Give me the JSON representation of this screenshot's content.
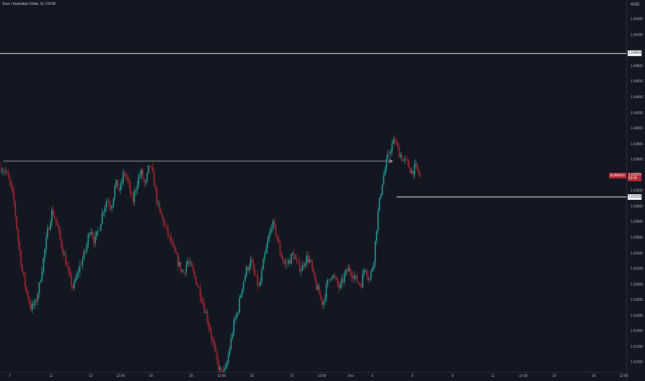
{
  "header": {
    "symbol_title": "Euro / Australian Dollar, 1h, FXCM"
  },
  "price_axis": {
    "currency": "AUD",
    "ticks": [
      "1.65400",
      "1.65200",
      "1.64800",
      "1.64600",
      "1.64400",
      "1.64200",
      "1.64000",
      "1.63800",
      "1.63600",
      "1.63200",
      "1.63000",
      "1.62800",
      "1.62600",
      "1.62400",
      "1.62200",
      "1.62000",
      "1.61800",
      "1.61600",
      "1.61400",
      "1.61200",
      "1.61000"
    ],
    "resistance_label": "1.64964",
    "support_label": "1.63124",
    "last_price_label": "1.63379",
    "countdown_label": "59:06",
    "symbol_badge": "EURAUD"
  },
  "time_axis": {
    "ticks": [
      "7",
      "11",
      "13",
      "12:00",
      "18",
      "20",
      "12:00",
      "25",
      "27",
      "12:00",
      "Dec",
      "3",
      "5",
      "9",
      "11",
      "12:00",
      "16",
      "18",
      "12:00"
    ]
  },
  "colors": {
    "background": "#131722",
    "up": "#26a69a",
    "down": "#b22833",
    "level_line": "#ffffff",
    "axis_text": "#b2b5be"
  },
  "chart_data": {
    "type": "candlestick",
    "symbol": "EURAUD",
    "timeframe": "1h",
    "ylim": [
      1.6088,
      1.6565
    ],
    "price_ticks": [
      1.654,
      1.652,
      1.648,
      1.646,
      1.644,
      1.642,
      1.64,
      1.638,
      1.636,
      1.632,
      1.63,
      1.628,
      1.626,
      1.624,
      1.622,
      1.62,
      1.618,
      1.616,
      1.614,
      1.612,
      1.61
    ],
    "horizontal_levels": [
      {
        "price": 1.64964,
        "label": "1.64964"
      },
      {
        "price": 1.63124,
        "label": "1.63124"
      }
    ],
    "last_price": 1.63379,
    "x_ticks": [
      "7",
      "11",
      "13",
      "12:00",
      "18",
      "20",
      "12:00",
      "25",
      "27",
      "12:00",
      "Dec",
      "3",
      "5",
      "9",
      "11",
      "12:00",
      "16",
      "18",
      "12:00"
    ],
    "close_path": [
      1.635,
      1.6345,
      1.633,
      1.6305,
      1.6255,
      1.6215,
      1.619,
      1.617,
      1.6175,
      1.62,
      1.6235,
      1.627,
      1.6295,
      1.628,
      1.6255,
      1.6235,
      1.621,
      1.6195,
      1.6215,
      1.623,
      1.6245,
      1.6275,
      1.6255,
      1.627,
      1.6295,
      1.631,
      1.63,
      1.633,
      1.632,
      1.6345,
      1.633,
      1.6305,
      1.633,
      1.6345,
      1.6325,
      1.6355,
      1.6335,
      1.63,
      1.6285,
      1.627,
      1.6255,
      1.624,
      1.6225,
      1.6215,
      1.623,
      1.622,
      1.6205,
      1.619,
      1.617,
      1.615,
      1.6125,
      1.61,
      1.6085,
      1.609,
      1.612,
      1.615,
      1.617,
      1.62,
      1.622,
      1.623,
      1.621,
      1.6195,
      1.623,
      1.6255,
      1.628,
      1.6265,
      1.624,
      1.6225,
      1.623,
      1.624,
      1.6225,
      1.622,
      1.6235,
      1.623,
      1.6205,
      1.619,
      1.6175,
      1.62,
      1.6215,
      1.6205,
      1.6195,
      1.621,
      1.622,
      1.6215,
      1.6205,
      1.62,
      1.6225,
      1.6205,
      1.623,
      1.629,
      1.633,
      1.6355,
      1.6375,
      1.6385,
      1.637,
      1.636,
      1.6355,
      1.6345,
      1.635,
      1.6338
    ]
  }
}
